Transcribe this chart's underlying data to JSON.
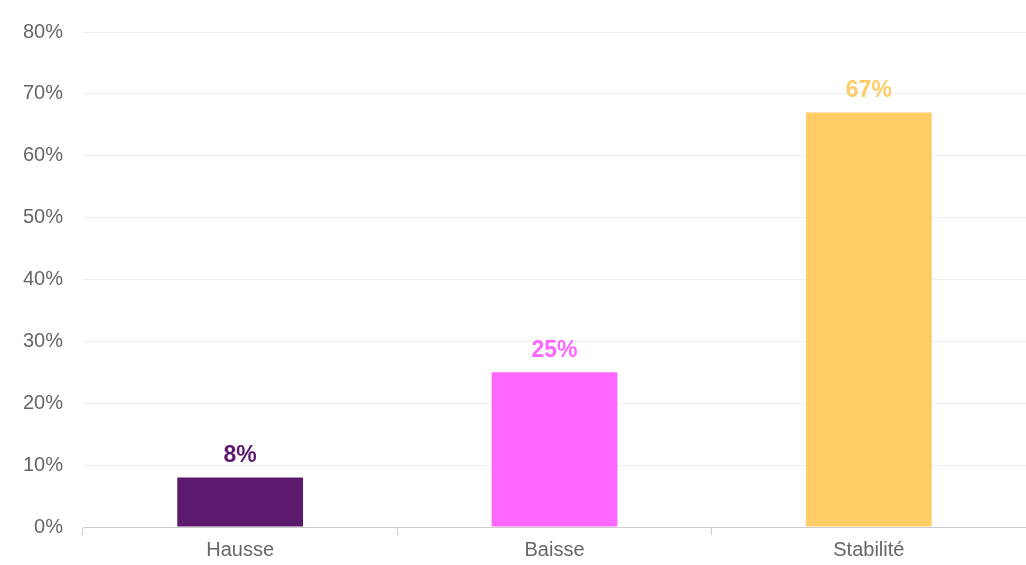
{
  "chart_data": {
    "type": "bar",
    "categories": [
      "Hausse",
      "Baisse",
      "Stabilité"
    ],
    "values": [
      8,
      25,
      67
    ],
    "colors": [
      "#5c1a6e",
      "#ff66ff",
      "#ffcc66"
    ],
    "ylim": [
      0,
      80
    ],
    "yticks": [
      {
        "value": 0,
        "label": "0%"
      },
      {
        "value": 10,
        "label": "10%"
      },
      {
        "value": 20,
        "label": "20%"
      },
      {
        "value": 30,
        "label": "30%"
      },
      {
        "value": 40,
        "label": "40%"
      },
      {
        "value": 50,
        "label": "50%"
      },
      {
        "value": 60,
        "label": "60%"
      },
      {
        "value": 70,
        "label": "70%"
      },
      {
        "value": 80,
        "label": "80%"
      }
    ],
    "value_labels": [
      "8%",
      "25%",
      "67%"
    ],
    "grid": "y",
    "legend": false
  }
}
